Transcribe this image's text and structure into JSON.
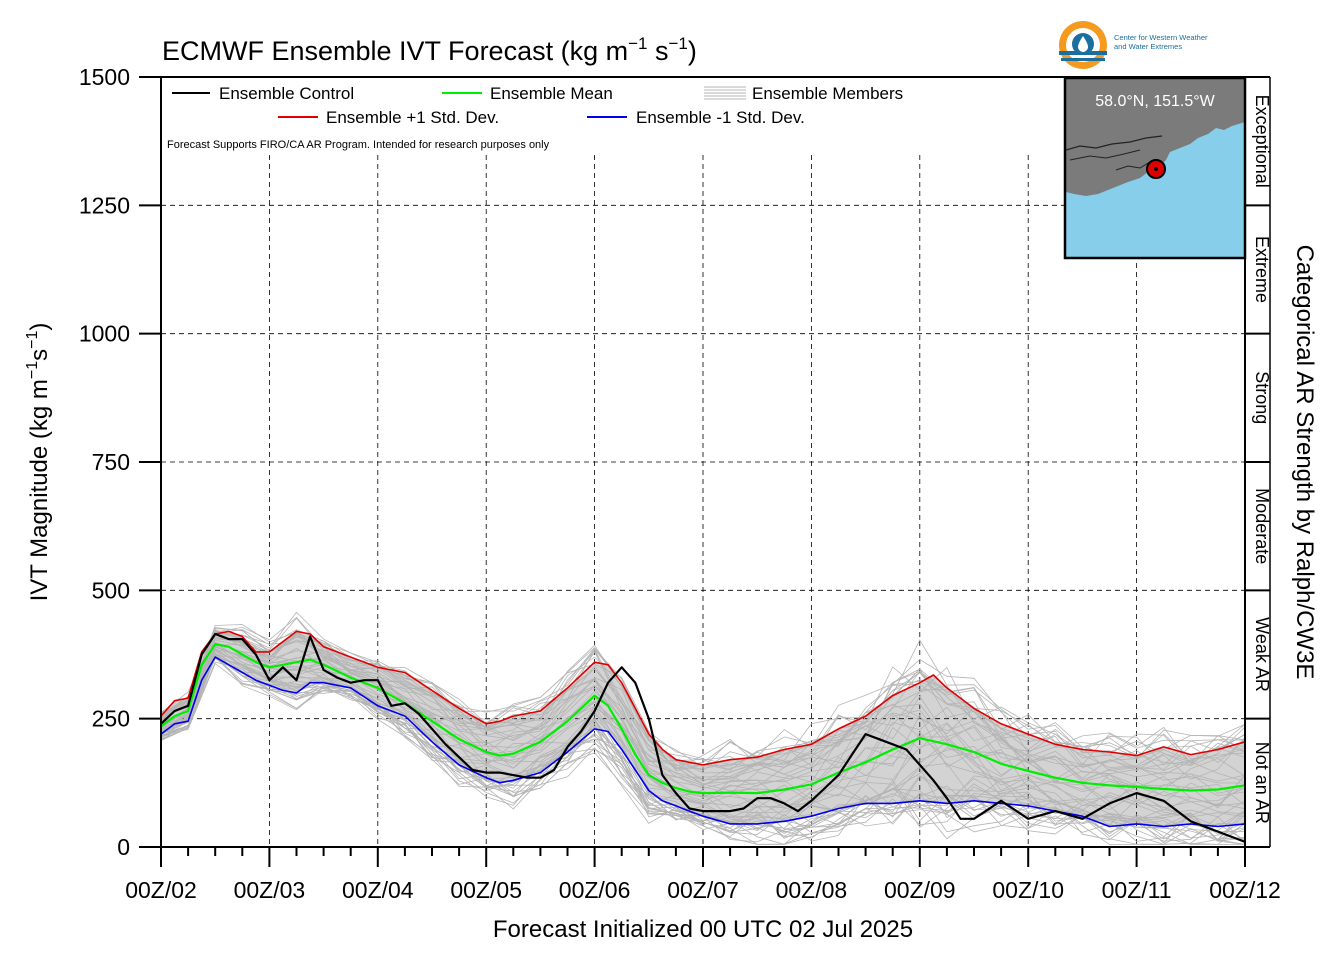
{
  "title_main": "ECMWF Ensemble IVT Forecast (kg m",
  "title_exp1": "−1",
  "title_mid": " s",
  "title_exp2": "−1",
  "title_end": ")",
  "ylabel_main": "IVT Magnitude (kg m",
  "ylabel_exp1": "−1",
  "ylabel_mid": "s",
  "ylabel_exp2": "−1",
  "ylabel_end": ")",
  "xlabel": "Forecast Initialized 00 UTC 02 Jul 2025",
  "right_axis_label": "Categorical AR Strength by Ralph/CW3E",
  "disclaimer": "Forecast Supports FIRO/CA AR Program. Intended for research purposes only",
  "legend": {
    "control": "Ensemble Control",
    "mean": "Ensemble Mean",
    "members": "Ensemble Members",
    "plus_std": "Ensemble +1 Std. Dev.",
    "minus_std": "Ensemble -1 Std. Dev."
  },
  "logo": {
    "line1": "Center for Western Weather",
    "line2": "and Water Extremes"
  },
  "inset": {
    "location": "58.0°N, 151.5°W"
  },
  "colors": {
    "control": "#000000",
    "mean": "#00ee00",
    "plus_std": "#e00000",
    "minus_std": "#0000ee",
    "members": "#b4b4b4",
    "spread_fill": "#d3d3d3",
    "ocean": "#87ceeb",
    "land": "#7b7b7b",
    "logo_orange": "#f39a1f",
    "logo_blue": "#1a6f9e"
  },
  "chart_data": {
    "type": "line",
    "x_unit": "forecast hour from 00Z/02",
    "xlim": [
      0,
      240
    ],
    "ylim": [
      0,
      1500
    ],
    "yticks": [
      0,
      250,
      500,
      750,
      1000,
      1250,
      1500
    ],
    "xtick_labels": [
      "00Z/02",
      "00Z/03",
      "00Z/04",
      "00Z/05",
      "00Z/06",
      "00Z/07",
      "00Z/08",
      "00Z/09",
      "00Z/10",
      "00Z/11",
      "00Z/12"
    ],
    "categories": [
      {
        "label": "Not an AR",
        "range": [
          0,
          250
        ]
      },
      {
        "label": "Weak AR",
        "range": [
          250,
          500
        ]
      },
      {
        "label": "Moderate",
        "range": [
          500,
          750
        ]
      },
      {
        "label": "Strong",
        "range": [
          750,
          1000
        ]
      },
      {
        "label": "Extreme",
        "range": [
          1000,
          1250
        ]
      },
      {
        "label": "Exceptional",
        "range": [
          1250,
          1500
        ]
      }
    ],
    "grid": true,
    "legend_position": "top-left",
    "series": [
      {
        "name": "Ensemble Control",
        "x": [
          0,
          3,
          6,
          9,
          12,
          15,
          18,
          21,
          24,
          27,
          30,
          33,
          36,
          39,
          42,
          45,
          48,
          51,
          54,
          57,
          60,
          63,
          66,
          69,
          72,
          75,
          78,
          81,
          84,
          87,
          90,
          93,
          96,
          99,
          102,
          105,
          108,
          111,
          114,
          117,
          120,
          123,
          126,
          129,
          132,
          135,
          138,
          141,
          144,
          147,
          150,
          153,
          156,
          159,
          162,
          165,
          168,
          171,
          174,
          177,
          180,
          186,
          192,
          198,
          204,
          210,
          216,
          222,
          228,
          234,
          240
        ],
        "values": [
          240,
          265,
          275,
          375,
          415,
          405,
          405,
          375,
          325,
          350,
          325,
          410,
          345,
          330,
          320,
          325,
          325,
          275,
          280,
          260,
          230,
          200,
          175,
          150,
          145,
          145,
          140,
          135,
          135,
          150,
          195,
          225,
          265,
          320,
          350,
          320,
          250,
          140,
          105,
          75,
          70,
          70,
          70,
          75,
          95,
          95,
          85,
          70,
          90,
          115,
          140,
          180,
          220,
          210,
          200,
          190,
          160,
          130,
          95,
          55,
          55,
          90,
          55,
          70,
          55,
          85,
          105,
          90,
          50,
          30,
          10
        ]
      },
      {
        "name": "Ensemble Mean",
        "x": [
          0,
          3,
          6,
          9,
          12,
          15,
          18,
          21,
          24,
          30,
          33,
          36,
          42,
          48,
          54,
          60,
          66,
          72,
          75,
          78,
          84,
          90,
          96,
          99,
          102,
          105,
          108,
          111,
          114,
          117,
          120,
          126,
          132,
          138,
          144,
          150,
          156,
          162,
          168,
          174,
          180,
          186,
          192,
          198,
          204,
          210,
          216,
          222,
          228,
          234,
          240
        ],
        "values": [
          235,
          255,
          265,
          355,
          395,
          390,
          375,
          360,
          350,
          360,
          365,
          355,
          330,
          310,
          280,
          245,
          210,
          185,
          178,
          182,
          205,
          245,
          295,
          275,
          230,
          180,
          140,
          125,
          115,
          108,
          105,
          106,
          105,
          112,
          122,
          145,
          165,
          190,
          212,
          200,
          185,
          162,
          148,
          135,
          125,
          120,
          117,
          113,
          110,
          112,
          120
        ]
      },
      {
        "name": "Ensemble +1 Std. Dev.",
        "x": [
          0,
          3,
          6,
          9,
          12,
          15,
          18,
          21,
          24,
          27,
          30,
          33,
          36,
          42,
          48,
          54,
          60,
          66,
          72,
          75,
          78,
          84,
          90,
          96,
          99,
          102,
          105,
          108,
          111,
          114,
          117,
          120,
          126,
          132,
          138,
          144,
          150,
          156,
          162,
          168,
          171,
          174,
          180,
          186,
          192,
          198,
          204,
          210,
          216,
          222,
          228,
          234,
          240
        ],
        "values": [
          255,
          285,
          290,
          380,
          415,
          420,
          410,
          380,
          380,
          400,
          420,
          415,
          390,
          370,
          350,
          340,
          305,
          270,
          240,
          245,
          255,
          265,
          310,
          360,
          355,
          320,
          270,
          220,
          190,
          170,
          165,
          160,
          170,
          175,
          190,
          200,
          230,
          255,
          295,
          320,
          335,
          310,
          270,
          240,
          220,
          200,
          190,
          185,
          178,
          195,
          180,
          190,
          205
        ]
      },
      {
        "name": "Ensemble -1 Std. Dev.",
        "x": [
          0,
          3,
          6,
          9,
          12,
          15,
          18,
          21,
          24,
          27,
          30,
          33,
          36,
          42,
          48,
          54,
          60,
          66,
          72,
          75,
          78,
          84,
          90,
          96,
          99,
          102,
          105,
          108,
          111,
          114,
          117,
          120,
          126,
          132,
          138,
          144,
          150,
          156,
          162,
          168,
          174,
          180,
          186,
          192,
          198,
          204,
          210,
          216,
          222,
          228,
          234,
          240
        ],
        "values": [
          220,
          240,
          245,
          325,
          370,
          355,
          340,
          325,
          315,
          305,
          300,
          320,
          320,
          310,
          275,
          255,
          205,
          160,
          135,
          125,
          130,
          145,
          185,
          230,
          225,
          190,
          150,
          110,
          90,
          80,
          70,
          60,
          45,
          45,
          50,
          60,
          75,
          85,
          85,
          90,
          85,
          90,
          85,
          80,
          70,
          60,
          40,
          45,
          40,
          45,
          40,
          45
        ]
      }
    ]
  }
}
